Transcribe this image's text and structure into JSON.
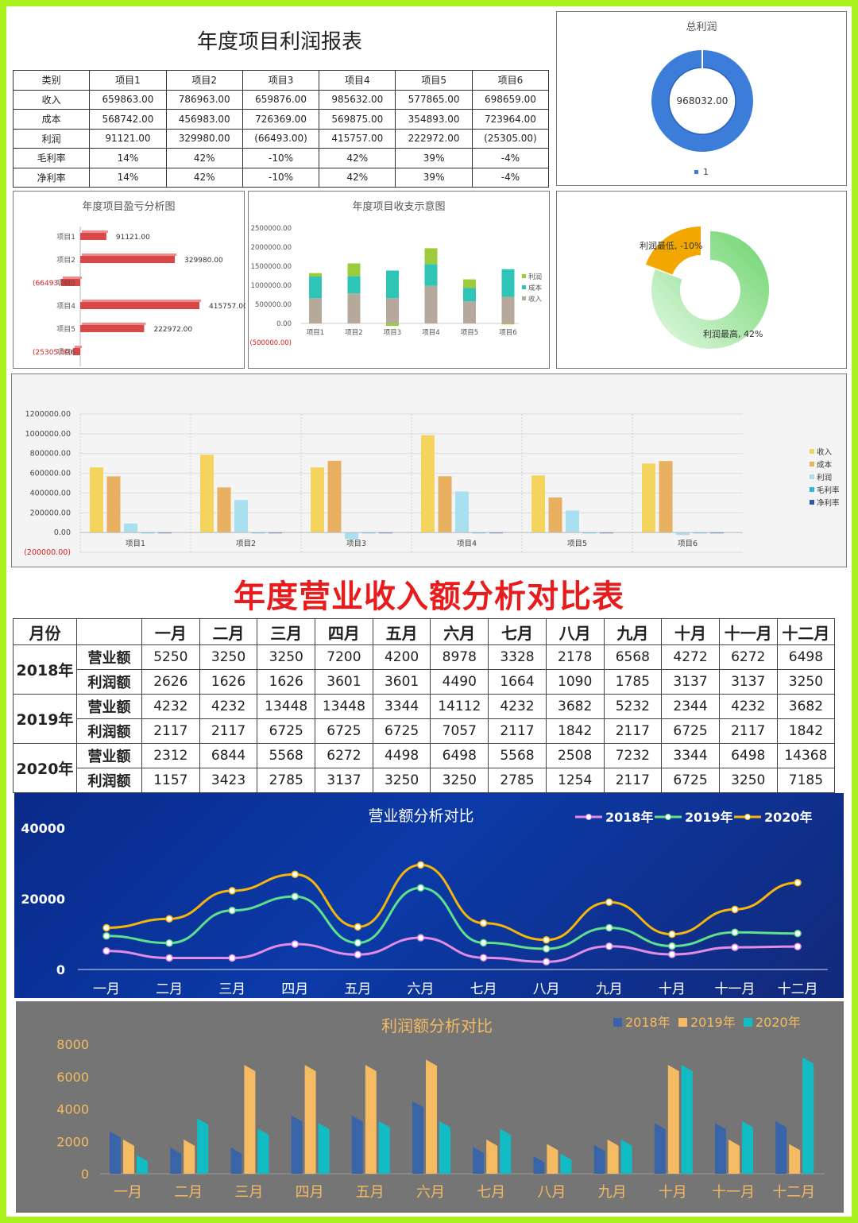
{
  "report": {
    "title": "年度项目利润报表",
    "headers": [
      "类别",
      "项目1",
      "项目2",
      "项目3",
      "项目4",
      "项目5",
      "项目6"
    ],
    "rows": [
      {
        "label": "收入",
        "values": [
          "659863.00",
          "786963.00",
          "659876.00",
          "985632.00",
          "577865.00",
          "698659.00"
        ]
      },
      {
        "label": "成本",
        "values": [
          "568742.00",
          "456983.00",
          "726369.00",
          "569875.00",
          "354893.00",
          "723964.00"
        ]
      },
      {
        "label": "利润",
        "values": [
          "91121.00",
          "329980.00",
          "(66493.00)",
          "415757.00",
          "222972.00",
          "(25305.00)"
        ]
      },
      {
        "label": "毛利率",
        "values": [
          "14%",
          "42%",
          "-10%",
          "42%",
          "39%",
          "-4%"
        ]
      },
      {
        "label": "净利率",
        "values": [
          "14%",
          "42%",
          "-10%",
          "42%",
          "39%",
          "-4%"
        ]
      }
    ]
  },
  "comparison": {
    "title": "年度营业收入额分析对比表",
    "month_header": "月份",
    "months": [
      "一月",
      "二月",
      "三月",
      "四月",
      "五月",
      "六月",
      "七月",
      "八月",
      "九月",
      "十月",
      "十一月",
      "十二月"
    ],
    "years": [
      {
        "year": "2018年",
        "rows": [
          {
            "label": "营业额",
            "values": [
              "5250",
              "3250",
              "3250",
              "7200",
              "4200",
              "8978",
              "3328",
              "2178",
              "6568",
              "4272",
              "6272",
              "6498"
            ]
          },
          {
            "label": "利润额",
            "values": [
              "2626",
              "1626",
              "1626",
              "3601",
              "3601",
              "4490",
              "1664",
              "1090",
              "1785",
              "3137",
              "3137",
              "3250"
            ]
          }
        ]
      },
      {
        "year": "2019年",
        "rows": [
          {
            "label": "营业额",
            "values": [
              "4232",
              "4232",
              "13448",
              "13448",
              "3344",
              "14112",
              "4232",
              "3682",
              "5232",
              "2344",
              "4232",
              "3682"
            ]
          },
          {
            "label": "利润额",
            "values": [
              "2117",
              "2117",
              "6725",
              "6725",
              "6725",
              "7057",
              "2117",
              "1842",
              "2117",
              "6725",
              "2117",
              "1842"
            ]
          }
        ]
      },
      {
        "year": "2020年",
        "rows": [
          {
            "label": "营业额",
            "values": [
              "2312",
              "6844",
              "5568",
              "6272",
              "4498",
              "6498",
              "5568",
              "2508",
              "7232",
              "3344",
              "6498",
              "14368"
            ]
          },
          {
            "label": "利润额",
            "values": [
              "1157",
              "3423",
              "2785",
              "3137",
              "3250",
              "3250",
              "2785",
              "1254",
              "2117",
              "6725",
              "3250",
              "7185"
            ]
          }
        ]
      }
    ]
  },
  "chart_data": [
    {
      "type": "pie",
      "title": "总利润",
      "variant": "donut",
      "labels": [
        "1"
      ],
      "values": [
        968032.0
      ],
      "data_labels": [
        "968032.00"
      ],
      "colors": [
        "#3b7dd8"
      ],
      "legend": [
        "1"
      ]
    },
    {
      "type": "bar",
      "orientation": "horizontal",
      "title": "年度项目盈亏分析图",
      "categories": [
        "项目1",
        "项目2",
        "项目3",
        "项目4",
        "项目5",
        "项目6"
      ],
      "values": [
        91121.0,
        329980.0,
        -66493.0,
        415757.0,
        222972.0,
        -25305.0
      ],
      "data_labels": [
        "91121.00",
        "329980.00",
        "(66493.00)",
        "415757.00",
        "222972.00",
        "(25305.00)"
      ],
      "color": "#d94848"
    },
    {
      "type": "bar",
      "stacked": true,
      "title": "年度项目收支示意图",
      "categories": [
        "项目1",
        "项目2",
        "项目3",
        "项目4",
        "项目5",
        "项目6"
      ],
      "series": [
        {
          "name": "收入",
          "values": [
            659863,
            786963,
            659876,
            985632,
            577865,
            698659
          ],
          "color": "#b5a99c"
        },
        {
          "name": "成本",
          "values": [
            568742,
            456983,
            726369,
            569875,
            354893,
            723964
          ],
          "color": "#2ec4b6"
        },
        {
          "name": "利润",
          "values": [
            91121,
            329980,
            -66493,
            415757,
            222972,
            -25305
          ],
          "color": "#9ccc3c"
        }
      ],
      "legend": [
        "利润",
        "成本",
        "收入"
      ],
      "yticks": [
        "2500000.00",
        "2000000.00",
        "1500000.00",
        "1000000.00",
        "500000.00",
        "0.00",
        "(500000.00)"
      ],
      "ylim": [
        -500000,
        2500000
      ]
    },
    {
      "type": "pie",
      "variant": "donut",
      "labels": [
        "利润最低",
        "利润最高"
      ],
      "values": [
        10,
        42
      ],
      "data_labels": [
        "利润最低, -10%",
        "利润最高, 42%"
      ],
      "colors": [
        "#f2a800",
        "#6cd46c"
      ]
    },
    {
      "type": "bar",
      "title": "",
      "categories": [
        "项目1",
        "项目2",
        "项目3",
        "项目4",
        "项目5",
        "项目6"
      ],
      "series": [
        {
          "name": "收入",
          "values": [
            659863,
            786963,
            659876,
            985632,
            577865,
            698659
          ],
          "color": "#f5d45e"
        },
        {
          "name": "成本",
          "values": [
            568742,
            456983,
            726369,
            569875,
            354893,
            723964
          ],
          "color": "#e8b060"
        },
        {
          "name": "利润",
          "values": [
            91121,
            329980,
            -66493,
            415757,
            222972,
            -25305
          ],
          "color": "#a8e0f0"
        },
        {
          "name": "毛利率",
          "values": [
            0.14,
            0.42,
            -0.1,
            0.42,
            0.39,
            -0.04
          ],
          "color": "#2fb6d6"
        },
        {
          "name": "净利率",
          "values": [
            0.14,
            0.42,
            -0.1,
            0.42,
            0.39,
            -0.04
          ],
          "color": "#2a5aa8"
        }
      ],
      "yticks": [
        "1200000.00",
        "1000000.00",
        "800000.00",
        "600000.00",
        "400000.00",
        "200000.00",
        "0.00",
        "(200000.00)"
      ],
      "ylim": [
        -200000,
        1200000
      ],
      "legend_position": "right"
    },
    {
      "type": "line",
      "title": "营业额分析对比",
      "categories": [
        "一月",
        "二月",
        "三月",
        "四月",
        "五月",
        "六月",
        "七月",
        "八月",
        "九月",
        "十月",
        "十一月",
        "十二月"
      ],
      "series": [
        {
          "name": "2018年",
          "values": [
            5250,
            3250,
            3250,
            7200,
            4200,
            8978,
            3328,
            2178,
            6568,
            4272,
            6272,
            6498
          ],
          "color": "#e48be8"
        },
        {
          "name": "2019年",
          "values": [
            9482,
            7482,
            16698,
            20648,
            7544,
            23090,
            7560,
            5860,
            11800,
            6616,
            10504,
            10180
          ],
          "color": "#5fe08a"
        },
        {
          "name": "2020年",
          "values": [
            11794,
            14326,
            22266,
            26920,
            12042,
            29588,
            13128,
            8368,
            19032,
            9960,
            17002,
            24548
          ],
          "color": "#f5b50a"
        }
      ],
      "yticks": [
        "40000",
        "20000",
        "0"
      ],
      "ylim": [
        0,
        40000
      ],
      "stacked": true
    },
    {
      "type": "bar",
      "title": "利润额分析对比",
      "categories": [
        "一月",
        "二月",
        "三月",
        "四月",
        "五月",
        "六月",
        "七月",
        "八月",
        "九月",
        "十月",
        "十一月",
        "十二月"
      ],
      "series": [
        {
          "name": "2018年",
          "values": [
            2626,
            1626,
            1626,
            3601,
            3601,
            4490,
            1664,
            1090,
            1785,
            3137,
            3137,
            3250
          ],
          "color": "#3a64a8"
        },
        {
          "name": "2019年",
          "values": [
            2117,
            2117,
            6725,
            6725,
            6725,
            7057,
            2117,
            1842,
            2117,
            6725,
            2117,
            1842
          ],
          "color": "#f5bb62"
        },
        {
          "name": "2020年",
          "values": [
            1157,
            3423,
            2785,
            3137,
            3250,
            3250,
            2785,
            1254,
            2117,
            6725,
            3250,
            7185
          ],
          "color": "#12bcc4"
        }
      ],
      "yticks": [
        "8000",
        "6000",
        "4000",
        "2000",
        "0"
      ],
      "ylim": [
        0,
        8000
      ]
    }
  ]
}
